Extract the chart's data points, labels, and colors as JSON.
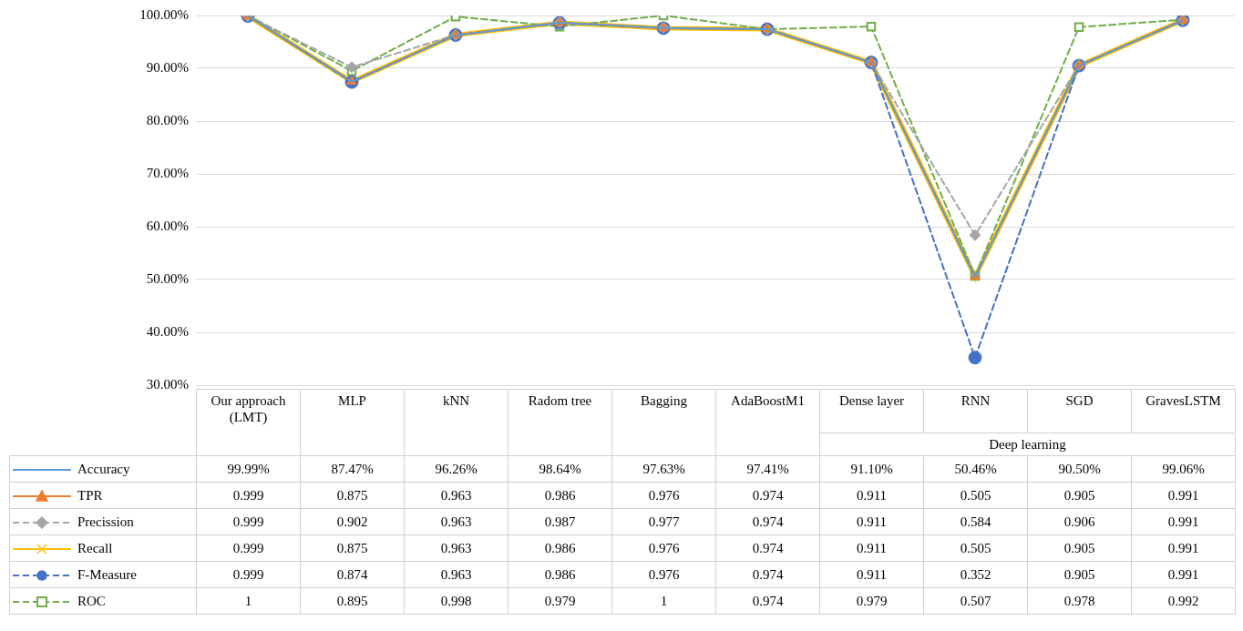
{
  "chart_data": {
    "type": "line",
    "categories": [
      "Our approach (LMT)",
      "MLP",
      "kNN",
      "Radom tree",
      "Bagging",
      "AdaBoostM1",
      "Dense layer",
      "RNN",
      "SGD",
      "GravesLSTM"
    ],
    "ylim": [
      0.3,
      1
    ],
    "yticks": [
      {
        "value": 0.3,
        "label": "30.00%"
      },
      {
        "value": 0.4,
        "label": "40.00%"
      },
      {
        "value": 0.5,
        "label": "50.00%"
      },
      {
        "value": 0.6,
        "label": "60.00%"
      },
      {
        "value": 0.7,
        "label": "70.00%"
      },
      {
        "value": 0.8,
        "label": "80.00%"
      },
      {
        "value": 0.9,
        "label": "90.00%"
      },
      {
        "value": 1,
        "label": "100.00%"
      }
    ],
    "grid": "y",
    "legend": "bottom",
    "annotations": [
      "Deep learning"
    ],
    "series": [
      {
        "name": "Accuracy",
        "color": "#5b9bd5",
        "marker": "none",
        "line_style": "solid",
        "values": [
          0.9999,
          0.8747,
          0.9626,
          0.9864,
          0.9763,
          0.9741,
          0.911,
          0.5046,
          0.905,
          0.9906
        ],
        "value_labels": [
          "99.99%",
          "87.47%",
          "96.26%",
          "98.64%",
          "97.63%",
          "97.41%",
          "91.10%",
          "50.46%",
          "90.50%",
          "99.06%"
        ]
      },
      {
        "name": "TPR",
        "color": "#ed7d31",
        "marker": "triangle",
        "line_style": "solid",
        "values": [
          0.999,
          0.875,
          0.963,
          0.986,
          0.976,
          0.974,
          0.911,
          0.505,
          0.905,
          0.991
        ],
        "value_labels": [
          "0.999",
          "0.875",
          "0.963",
          "0.986",
          "0.976",
          "0.974",
          "0.911",
          "0.505",
          "0.905",
          "0.991"
        ]
      },
      {
        "name": "Precission",
        "color": "#a5a5a5",
        "marker": "diamond",
        "line_style": "dashed",
        "values": [
          0.999,
          0.902,
          0.963,
          0.987,
          0.977,
          0.974,
          0.911,
          0.584,
          0.906,
          0.991
        ],
        "value_labels": [
          "0.999",
          "0.902",
          "0.963",
          "0.987",
          "0.977",
          "0.974",
          "0.911",
          "0.584",
          "0.906",
          "0.991"
        ]
      },
      {
        "name": "Recall",
        "color": "#ffc000",
        "marker": "cross",
        "line_style": "solid",
        "values": [
          0.999,
          0.875,
          0.963,
          0.986,
          0.976,
          0.974,
          0.911,
          0.505,
          0.905,
          0.991
        ],
        "value_labels": [
          "0.999",
          "0.875",
          "0.963",
          "0.986",
          "0.976",
          "0.974",
          "0.911",
          "0.505",
          "0.905",
          "0.991"
        ]
      },
      {
        "name": "F-Measure",
        "color": "#4472c4",
        "marker": "circle",
        "line_style": "dashed",
        "values": [
          0.999,
          0.874,
          0.963,
          0.986,
          0.976,
          0.974,
          0.911,
          0.352,
          0.905,
          0.991
        ],
        "value_labels": [
          "0.999",
          "0.874",
          "0.963",
          "0.986",
          "0.976",
          "0.974",
          "0.911",
          "0.352",
          "0.905",
          "0.991"
        ]
      },
      {
        "name": "ROC",
        "color": "#70ad47",
        "marker": "square",
        "line_style": "dashed",
        "values": [
          1,
          0.895,
          0.998,
          0.979,
          1,
          0.974,
          0.979,
          0.507,
          0.978,
          0.992
        ],
        "value_labels": [
          "1",
          "0.895",
          "0.998",
          "0.979",
          "1",
          "0.974",
          "0.979",
          "0.507",
          "0.978",
          "0.992"
        ]
      }
    ]
  }
}
